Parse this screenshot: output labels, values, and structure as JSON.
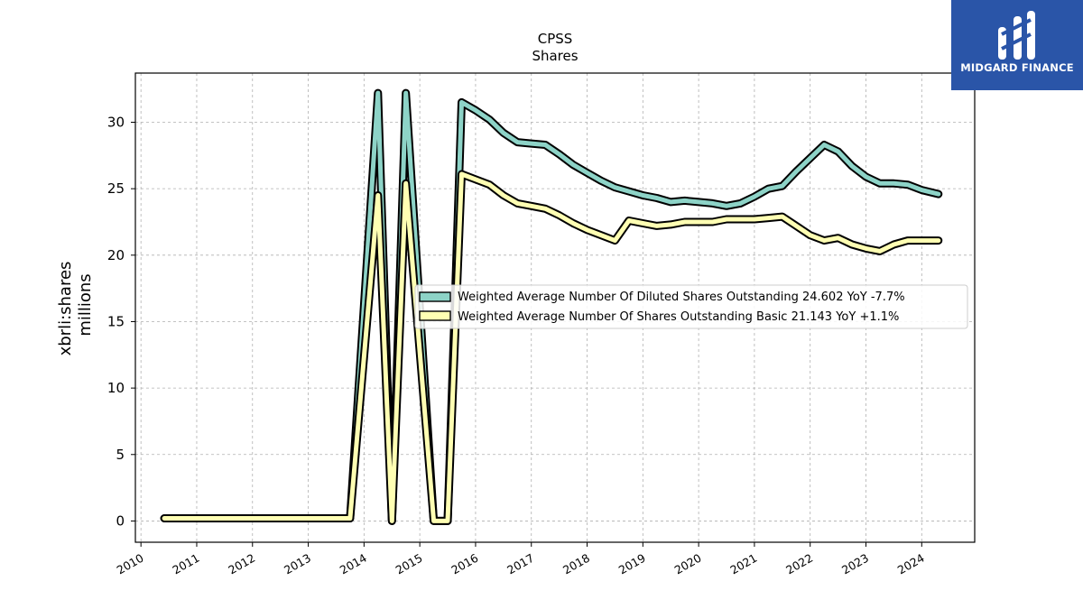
{
  "chart_data": {
    "type": "line",
    "title": "CPSS",
    "subtitle": "Shares",
    "ylabel": "xbrli:shares",
    "ylabel2": "millions",
    "xlim": [
      2009.9,
      2024.95
    ],
    "ylim": [
      -1.6,
      33.7
    ],
    "yticks": [
      0,
      5,
      10,
      15,
      20,
      25,
      30
    ],
    "xticks": [
      "2010",
      "2011",
      "2012",
      "2013",
      "2014",
      "2015",
      "2016",
      "2017",
      "2018",
      "2019",
      "2020",
      "2021",
      "2022",
      "2023",
      "2024"
    ],
    "grid": true,
    "legend_position": "center-right",
    "series": [
      {
        "name": "Weighted Average Number Of Diluted Shares Outstanding",
        "legend_label": "Weighted Average Number Of Diluted Shares Outstanding  24.602 YoY -7.7%",
        "color": "#8dd3c7",
        "points": [
          [
            2010.42,
            0.2
          ],
          [
            2013.75,
            0.2
          ],
          [
            2014.25,
            32.2
          ],
          [
            2014.5,
            0.0
          ],
          [
            2014.75,
            32.2
          ],
          [
            2015.25,
            0.0
          ],
          [
            2015.5,
            0.0
          ],
          [
            2015.75,
            31.5
          ],
          [
            2016.0,
            30.9
          ],
          [
            2016.25,
            30.2
          ],
          [
            2016.5,
            29.2
          ],
          [
            2016.75,
            28.5
          ],
          [
            2017.0,
            28.4
          ],
          [
            2017.25,
            28.3
          ],
          [
            2017.5,
            27.6
          ],
          [
            2017.75,
            26.8
          ],
          [
            2018.0,
            26.2
          ],
          [
            2018.25,
            25.6
          ],
          [
            2018.5,
            25.1
          ],
          [
            2018.75,
            24.8
          ],
          [
            2019.0,
            24.5
          ],
          [
            2019.25,
            24.3
          ],
          [
            2019.5,
            24.0
          ],
          [
            2019.75,
            24.1
          ],
          [
            2020.0,
            24.0
          ],
          [
            2020.25,
            23.9
          ],
          [
            2020.5,
            23.7
          ],
          [
            2020.75,
            23.9
          ],
          [
            2021.0,
            24.4
          ],
          [
            2021.25,
            25.0
          ],
          [
            2021.5,
            25.2
          ],
          [
            2021.75,
            26.3
          ],
          [
            2022.0,
            27.3
          ],
          [
            2022.25,
            28.3
          ],
          [
            2022.5,
            27.8
          ],
          [
            2022.75,
            26.7
          ],
          [
            2023.0,
            25.9
          ],
          [
            2023.25,
            25.4
          ],
          [
            2023.5,
            25.4
          ],
          [
            2023.75,
            25.3
          ],
          [
            2024.0,
            24.9
          ],
          [
            2024.3,
            24.6
          ]
        ]
      },
      {
        "name": "Weighted Average Number Of Shares Outstanding Basic",
        "legend_label": "Weighted Average Number Of Shares Outstanding Basic  21.143 YoY +1.1%",
        "color": "#ffffb3",
        "points": [
          [
            2010.42,
            0.2
          ],
          [
            2013.75,
            0.2
          ],
          [
            2014.25,
            24.5
          ],
          [
            2014.5,
            0.0
          ],
          [
            2014.75,
            25.4
          ],
          [
            2015.25,
            0.0
          ],
          [
            2015.5,
            0.0
          ],
          [
            2015.75,
            26.1
          ],
          [
            2016.0,
            25.7
          ],
          [
            2016.25,
            25.3
          ],
          [
            2016.5,
            24.5
          ],
          [
            2016.75,
            23.9
          ],
          [
            2017.0,
            23.7
          ],
          [
            2017.25,
            23.5
          ],
          [
            2017.5,
            23.0
          ],
          [
            2017.75,
            22.4
          ],
          [
            2018.0,
            21.9
          ],
          [
            2018.25,
            21.5
          ],
          [
            2018.5,
            21.1
          ],
          [
            2018.75,
            22.6
          ],
          [
            2019.0,
            22.4
          ],
          [
            2019.25,
            22.2
          ],
          [
            2019.5,
            22.3
          ],
          [
            2019.75,
            22.5
          ],
          [
            2020.0,
            22.5
          ],
          [
            2020.25,
            22.5
          ],
          [
            2020.5,
            22.7
          ],
          [
            2020.75,
            22.7
          ],
          [
            2021.0,
            22.7
          ],
          [
            2021.25,
            22.8
          ],
          [
            2021.5,
            22.9
          ],
          [
            2021.75,
            22.2
          ],
          [
            2022.0,
            21.5
          ],
          [
            2022.25,
            21.1
          ],
          [
            2022.5,
            21.3
          ],
          [
            2022.75,
            20.8
          ],
          [
            2023.0,
            20.5
          ],
          [
            2023.25,
            20.3
          ],
          [
            2023.5,
            20.8
          ],
          [
            2023.75,
            21.1
          ],
          [
            2024.0,
            21.1
          ],
          [
            2024.3,
            21.1
          ]
        ]
      }
    ]
  },
  "logo": {
    "text": "MIDGARD FINANCE",
    "icon": "midgard-finance-logo-icon",
    "bg_color": "#2a55a8"
  }
}
